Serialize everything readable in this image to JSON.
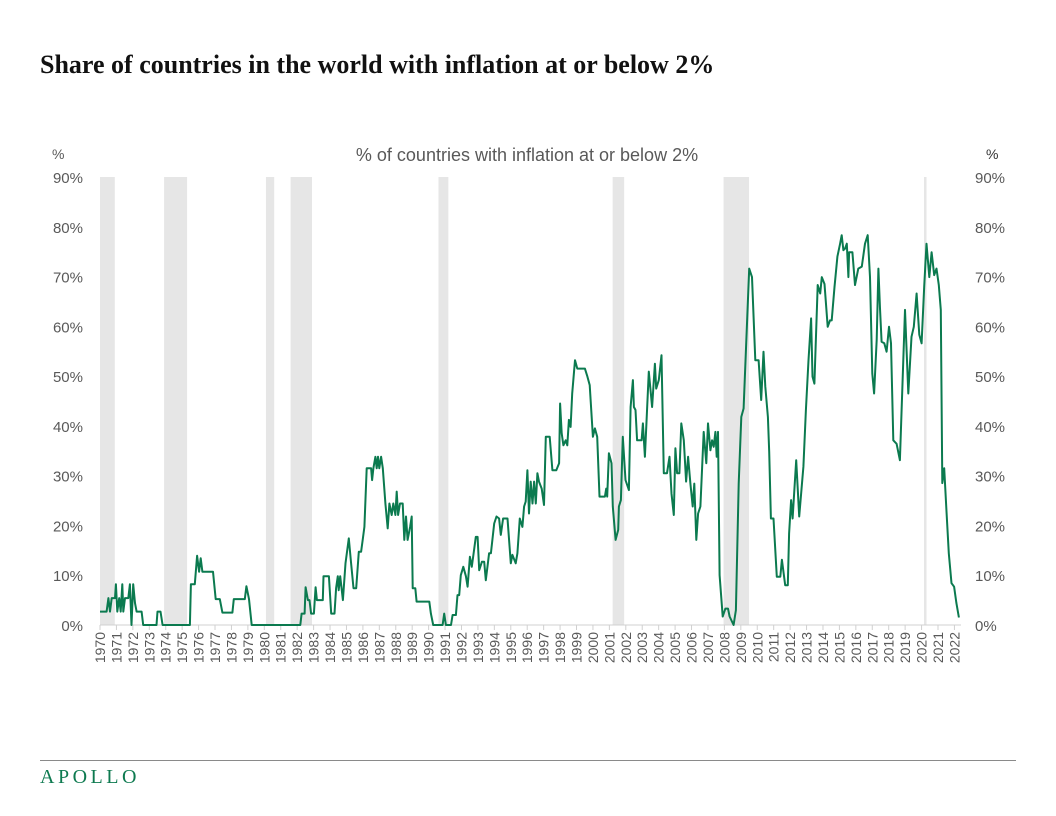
{
  "title": "Share of countries in the world with inflation at or below 2%",
  "logo": "APOLLO",
  "colors": {
    "line": "#0b7a4f",
    "recession": "#e6e6e6",
    "axis": "#d0d0d0",
    "text": "#595959"
  },
  "chart_data": {
    "type": "line",
    "title": "% of countries with inflation at or below 2%",
    "ylabel_left": "%",
    "ylabel_right": "%",
    "ylim": [
      0,
      90
    ],
    "xlim": [
      1970,
      2022.4
    ],
    "yticks": [
      "0%",
      "10%",
      "20%",
      "30%",
      "40%",
      "50%",
      "60%",
      "70%",
      "80%",
      "90%"
    ],
    "xticks": [
      "1970",
      "1971",
      "1972",
      "1973",
      "1974",
      "1975",
      "1976",
      "1977",
      "1978",
      "1979",
      "1980",
      "1981",
      "1982",
      "1983",
      "1984",
      "1985",
      "1986",
      "1987",
      "1988",
      "1989",
      "1990",
      "1991",
      "1992",
      "1993",
      "1994",
      "1995",
      "1996",
      "1997",
      "1998",
      "1999",
      "2000",
      "2001",
      "2002",
      "2003",
      "2004",
      "2005",
      "2006",
      "2007",
      "2008",
      "2009",
      "2010",
      "2011",
      "2012",
      "2013",
      "2014",
      "2015",
      "2016",
      "2017",
      "2018",
      "2019",
      "2020",
      "2021",
      "2022"
    ],
    "grid": false,
    "recessions": [
      [
        1970.0,
        1970.9
      ],
      [
        1973.9,
        1975.3
      ],
      [
        1980.1,
        1980.6
      ],
      [
        1981.6,
        1982.9
      ],
      [
        1990.6,
        1991.2
      ],
      [
        2001.2,
        2001.9
      ],
      [
        2007.95,
        2009.5
      ],
      [
        2020.15,
        2020.3
      ]
    ],
    "series": [
      {
        "x": [
          1970.0,
          1970.4,
          1970.51,
          1970.61,
          1970.71,
          1970.91,
          1970.97,
          1971.05,
          1971.17,
          1971.26,
          1971.36,
          1971.42,
          1971.52,
          1971.72,
          1971.82,
          1971.92,
          1972.02,
          1972.13,
          1972.23,
          1972.53,
          1972.63,
          1973.44,
          1973.5,
          1973.68,
          1973.81,
          1975.47,
          1975.53,
          1975.77,
          1975.91,
          1976.03,
          1976.13,
          1976.23,
          1976.88,
          1977.04,
          1977.29,
          1977.45,
          1978.06,
          1978.14,
          1978.81,
          1978.91,
          1979.07,
          1979.23,
          1982.19,
          1982.27,
          1982.45,
          1982.51,
          1982.65,
          1982.75,
          1982.85,
          1983.02,
          1983.12,
          1983.2,
          1983.56,
          1983.6,
          1983.93,
          1984.07,
          1984.27,
          1984.37,
          1984.47,
          1984.53,
          1984.62,
          1984.78,
          1984.94,
          1985.14,
          1985.28,
          1985.43,
          1985.59,
          1985.75,
          1985.89,
          1985.99,
          1986.09,
          1986.23,
          1986.5,
          1986.56,
          1986.64,
          1986.76,
          1986.84,
          1986.92,
          1987.0,
          1987.11,
          1987.21,
          1987.37,
          1987.51,
          1987.61,
          1987.75,
          1987.85,
          1987.98,
          1988.06,
          1988.14,
          1988.26,
          1988.42,
          1988.52,
          1988.62,
          1988.72,
          1988.87,
          1988.97,
          1989.03,
          1989.19,
          1989.27,
          1990.04,
          1990.14,
          1990.28,
          1990.85,
          1990.95,
          1991.05,
          1991.36,
          1991.46,
          1991.66,
          1991.76,
          1991.86,
          1991.96,
          1992.11,
          1992.27,
          1992.37,
          1992.51,
          1992.63,
          1992.77,
          1992.87,
          1992.98,
          1993.08,
          1993.24,
          1993.38,
          1993.48,
          1993.68,
          1993.79,
          1993.99,
          1994.13,
          1994.29,
          1994.39,
          1994.53,
          1994.8,
          1995.0,
          1995.1,
          1995.3,
          1995.4,
          1995.55,
          1995.71,
          1995.81,
          1995.91,
          1996.01,
          1996.11,
          1996.21,
          1996.32,
          1996.42,
          1996.52,
          1996.62,
          1996.72,
          1996.88,
          1997.02,
          1997.13,
          1997.37,
          1997.53,
          1997.77,
          1997.94,
          1998.0,
          1998.1,
          1998.2,
          1998.34,
          1998.44,
          1998.54,
          1998.64,
          1998.74,
          1998.91,
          1999.05,
          1999.51,
          1999.66,
          1999.8,
          2000.0,
          2000.12,
          2000.26,
          2000.4,
          2000.73,
          2000.81,
          2000.87,
          2000.97,
          2001.13,
          2001.21,
          2001.38,
          2001.54,
          2001.58,
          2001.7,
          2001.82,
          2001.98,
          2002.19,
          2002.29,
          2002.43,
          2002.49,
          2002.59,
          2002.69,
          2002.96,
          2003.04,
          2003.16,
          2003.4,
          2003.6,
          2003.77,
          2003.85,
          2004.01,
          2004.17,
          2004.31,
          2004.51,
          2004.66,
          2004.78,
          2004.92,
          2005.02,
          2005.12,
          2005.26,
          2005.38,
          2005.53,
          2005.67,
          2005.79,
          2005.93,
          2006.07,
          2006.17,
          2006.29,
          2006.4,
          2006.54,
          2006.74,
          2006.9,
          2007.0,
          2007.15,
          2007.25,
          2007.35,
          2007.45,
          2007.53,
          2007.61,
          2007.71,
          2007.9,
          2008.06,
          2008.22,
          2008.32,
          2008.56,
          2008.7,
          2008.87,
          2009.03,
          2009.17,
          2009.51,
          2009.68,
          2009.88,
          2010.08,
          2010.24,
          2010.38,
          2010.49,
          2010.65,
          2010.73,
          2010.83,
          2010.99,
          2011.19,
          2011.4,
          2011.5,
          2011.7,
          2011.86,
          2011.94,
          2012.06,
          2012.15,
          2012.37,
          2012.55,
          2012.81,
          2012.96,
          2013.12,
          2013.28,
          2013.36,
          2013.48,
          2013.68,
          2013.83,
          2013.93,
          2014.09,
          2014.29,
          2014.43,
          2014.53,
          2014.7,
          2014.88,
          2015.04,
          2015.14,
          2015.24,
          2015.34,
          2015.45,
          2015.55,
          2015.59,
          2015.79,
          2015.95,
          2016.15,
          2016.36,
          2016.56,
          2016.72,
          2016.86,
          2017.0,
          2017.11,
          2017.27,
          2017.37,
          2017.47,
          2017.57,
          2017.73,
          2017.87,
          2018.02,
          2018.14,
          2018.28,
          2018.48,
          2018.68,
          2018.99,
          2019.19,
          2019.39,
          2019.53,
          2019.7,
          2019.86,
          2020.0,
          2020.16,
          2020.3,
          2020.47,
          2020.61,
          2020.77,
          2020.91,
          2021.05,
          2021.17,
          2021.26,
          2021.38,
          2021.52,
          2021.66,
          2021.82,
          2021.98,
          2022.12,
          2022.27
        ],
        "y": [
          2.7,
          2.7,
          5.4,
          2.7,
          5.4,
          5.4,
          8.2,
          2.7,
          5.4,
          2.7,
          8.2,
          2.7,
          5.4,
          5.4,
          8.2,
          0,
          8.2,
          4.4,
          2.7,
          2.7,
          0,
          0,
          2.7,
          2.7,
          0,
          0,
          8.2,
          8.2,
          13.9,
          10.7,
          13.4,
          10.7,
          10.7,
          5.2,
          5.2,
          2.5,
          2.5,
          5.2,
          5.2,
          7.8,
          5.2,
          0,
          0,
          2.3,
          2.3,
          7.6,
          5.0,
          5.0,
          2.3,
          2.3,
          7.6,
          5.0,
          5.0,
          9.8,
          9.8,
          2.3,
          2.3,
          7.4,
          9.8,
          7.0,
          9.8,
          5.0,
          12.4,
          17.4,
          12.4,
          7.4,
          7.4,
          14.7,
          14.7,
          17.1,
          19.7,
          31.5,
          31.5,
          29.1,
          31.5,
          33.8,
          31.5,
          33.8,
          31.5,
          33.8,
          31.5,
          24.4,
          19.4,
          24.4,
          22.1,
          24.4,
          22.1,
          26.8,
          22.1,
          24.4,
          24.4,
          17.1,
          21.8,
          17.1,
          19.7,
          21.8,
          7.4,
          7.4,
          4.7,
          4.7,
          2.3,
          0,
          0,
          2.3,
          0,
          0,
          2.0,
          2.0,
          6.0,
          6.0,
          10.0,
          11.7,
          9.8,
          7.7,
          13.7,
          11.7,
          15.1,
          17.7,
          17.7,
          11.0,
          12.7,
          12.7,
          9.0,
          14.4,
          14.4,
          20.4,
          21.8,
          21.4,
          18.1,
          21.4,
          21.4,
          12.4,
          14.1,
          12.4,
          14.4,
          21.4,
          19.7,
          23.8,
          24.8,
          31.1,
          22.4,
          28.8,
          24.4,
          28.8,
          24.4,
          30.5,
          28.8,
          27.4,
          24.1,
          37.8,
          37.8,
          31.1,
          31.1,
          32.5,
          44.5,
          38.5,
          36.1,
          37.1,
          36.1,
          41.2,
          39.8,
          46.5,
          53.2,
          51.5,
          51.5,
          49.9,
          48.2,
          37.8,
          39.5,
          37.8,
          25.8,
          25.8,
          27.4,
          25.8,
          34.5,
          32.5,
          23.8,
          17.1,
          19.1,
          23.8,
          25.1,
          37.8,
          29.1,
          27.1,
          43.8,
          49.2,
          43.8,
          43.2,
          37.1,
          37.1,
          40.5,
          33.8,
          50.9,
          43.8,
          52.5,
          47.5,
          49.2,
          54.2,
          30.5,
          30.5,
          33.8,
          26.4,
          22.1,
          35.5,
          30.5,
          30.5,
          40.5,
          37.1,
          28.8,
          33.8,
          28.4,
          23.8,
          28.4,
          17.1,
          22.4,
          23.8,
          38.8,
          32.5,
          40.5,
          35.1,
          37.1,
          35.8,
          38.8,
          33.8,
          38.8,
          10.0,
          1.7,
          3.3,
          3.3,
          1.7,
          0,
          3.0,
          28.4,
          41.8,
          43.5,
          71.6,
          69.9,
          53.2,
          53.2,
          45.2,
          54.9,
          47.9,
          41.8,
          34.8,
          21.4,
          21.4,
          9.7,
          9.7,
          13.1,
          8.0,
          8.0,
          18.4,
          25.1,
          21.4,
          33.1,
          21.8,
          31.8,
          43.2,
          53.2,
          61.6,
          49.9,
          48.5,
          68.3,
          66.6,
          69.9,
          68.5,
          59.9,
          61.2,
          61.2,
          67.9,
          74.0,
          76.6,
          78.3,
          75.3,
          75.6,
          76.6,
          69.9,
          74.9,
          74.9,
          68.3,
          71.6,
          72.0,
          76.6,
          78.3,
          69.9,
          50.5,
          46.5,
          57.3,
          71.6,
          63.6,
          56.9,
          56.6,
          54.9,
          59.9,
          56.6,
          37.1,
          36.4,
          33.1,
          63.3,
          46.5,
          57.9,
          59.9,
          66.6,
          58.3,
          56.6,
          68.0,
          76.6,
          69.9,
          74.9,
          70.3,
          71.6,
          68.3,
          63.3,
          28.5,
          31.5,
          22.8,
          14.4,
          8.4,
          7.7,
          4.4,
          1.5
        ]
      }
    ]
  }
}
